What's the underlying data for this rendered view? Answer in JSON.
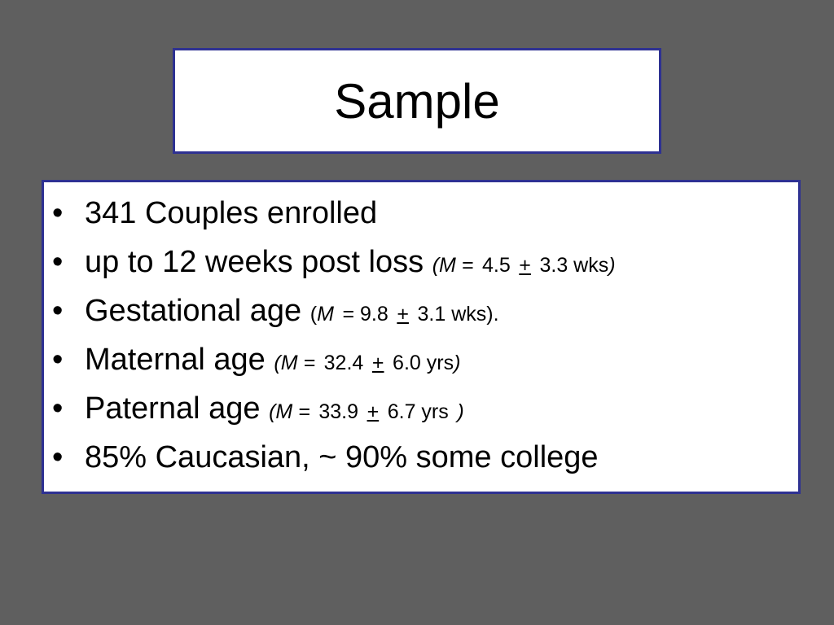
{
  "title": "Sample",
  "bullets": [
    [
      "341 Couples enrolled"
    ],
    [
      "up to 12 weeks post loss",
      "(M =",
      "4.5",
      "+",
      "3.3 wks",
      ")"
    ],
    [
      "Gestational age",
      "(",
      "M",
      "= 9.8",
      "+",
      "3.1 wks)."
    ],
    [
      "Maternal age",
      "(M =",
      "32.4",
      "+",
      "6.0 yrs",
      ")"
    ],
    [
      "Paternal age",
      "(M =",
      "33.9",
      "+",
      "6.7 yrs",
      ")"
    ],
    [
      "85% Caucasian, ~ 90% some college"
    ]
  ]
}
